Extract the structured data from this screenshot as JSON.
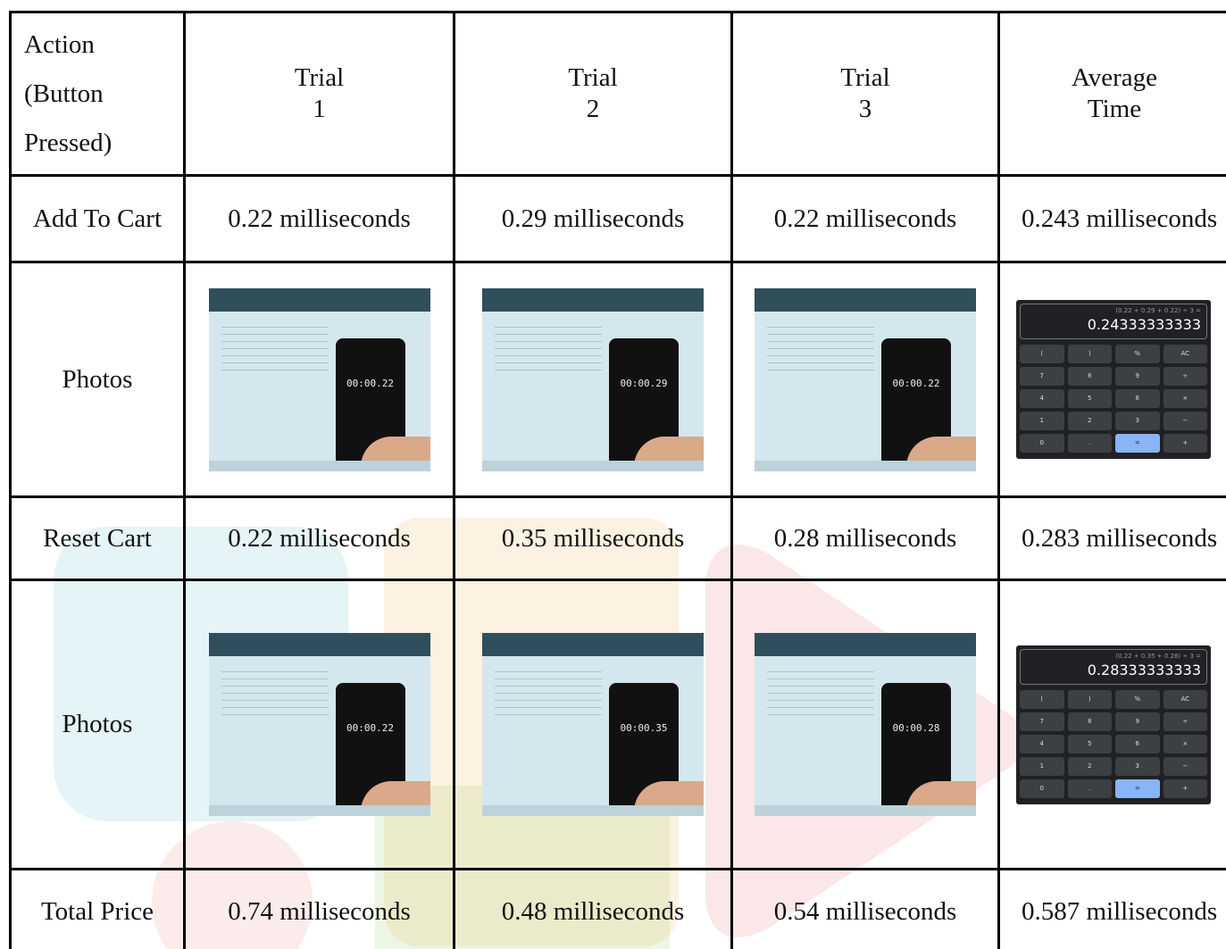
{
  "table": {
    "header": [
      [
        "Action",
        "(Button",
        "Pressed)"
      ],
      [
        "Trial",
        "1"
      ],
      [
        "Trial",
        "2"
      ],
      [
        "Trial",
        "3"
      ],
      [
        "Average",
        "Time"
      ]
    ],
    "rows": [
      {
        "label": "Add To Cart",
        "trials": [
          "0.22 milliseconds",
          "0.29 milliseconds",
          "0.22 milliseconds"
        ],
        "average": "0.243 milliseconds"
      },
      {
        "label": "Photos",
        "phones": [
          "00:00.22",
          "00:00.29",
          "00:00.22"
        ],
        "calculator": {
          "expression": "(0.22 + 0.29 + 0.22) ÷ 3 =",
          "result": "0.24333333333"
        }
      },
      {
        "label": "Reset Cart",
        "trials": [
          "0.22 milliseconds",
          "0.35 milliseconds",
          "0.28 milliseconds"
        ],
        "average": "0.283 milliseconds"
      },
      {
        "label": "Photos",
        "phones": [
          "00:00.22",
          "00:00.35",
          "00:00.28"
        ],
        "calculator": {
          "expression": "(0.22 + 0.35 + 0.28) ÷ 3 =",
          "result": "0.28333333333"
        }
      },
      {
        "label": "Total Price",
        "trials": [
          "0.74 milliseconds",
          "0.48 milliseconds",
          "0.54 milliseconds"
        ],
        "average": "0.587 milliseconds"
      }
    ],
    "calculator_keys": [
      "(",
      ")",
      "%",
      "AC",
      "7",
      "8",
      "9",
      "÷",
      "4",
      "5",
      "6",
      "×",
      "1",
      "2",
      "3",
      "−",
      "0",
      ".",
      "=",
      "+"
    ]
  }
}
